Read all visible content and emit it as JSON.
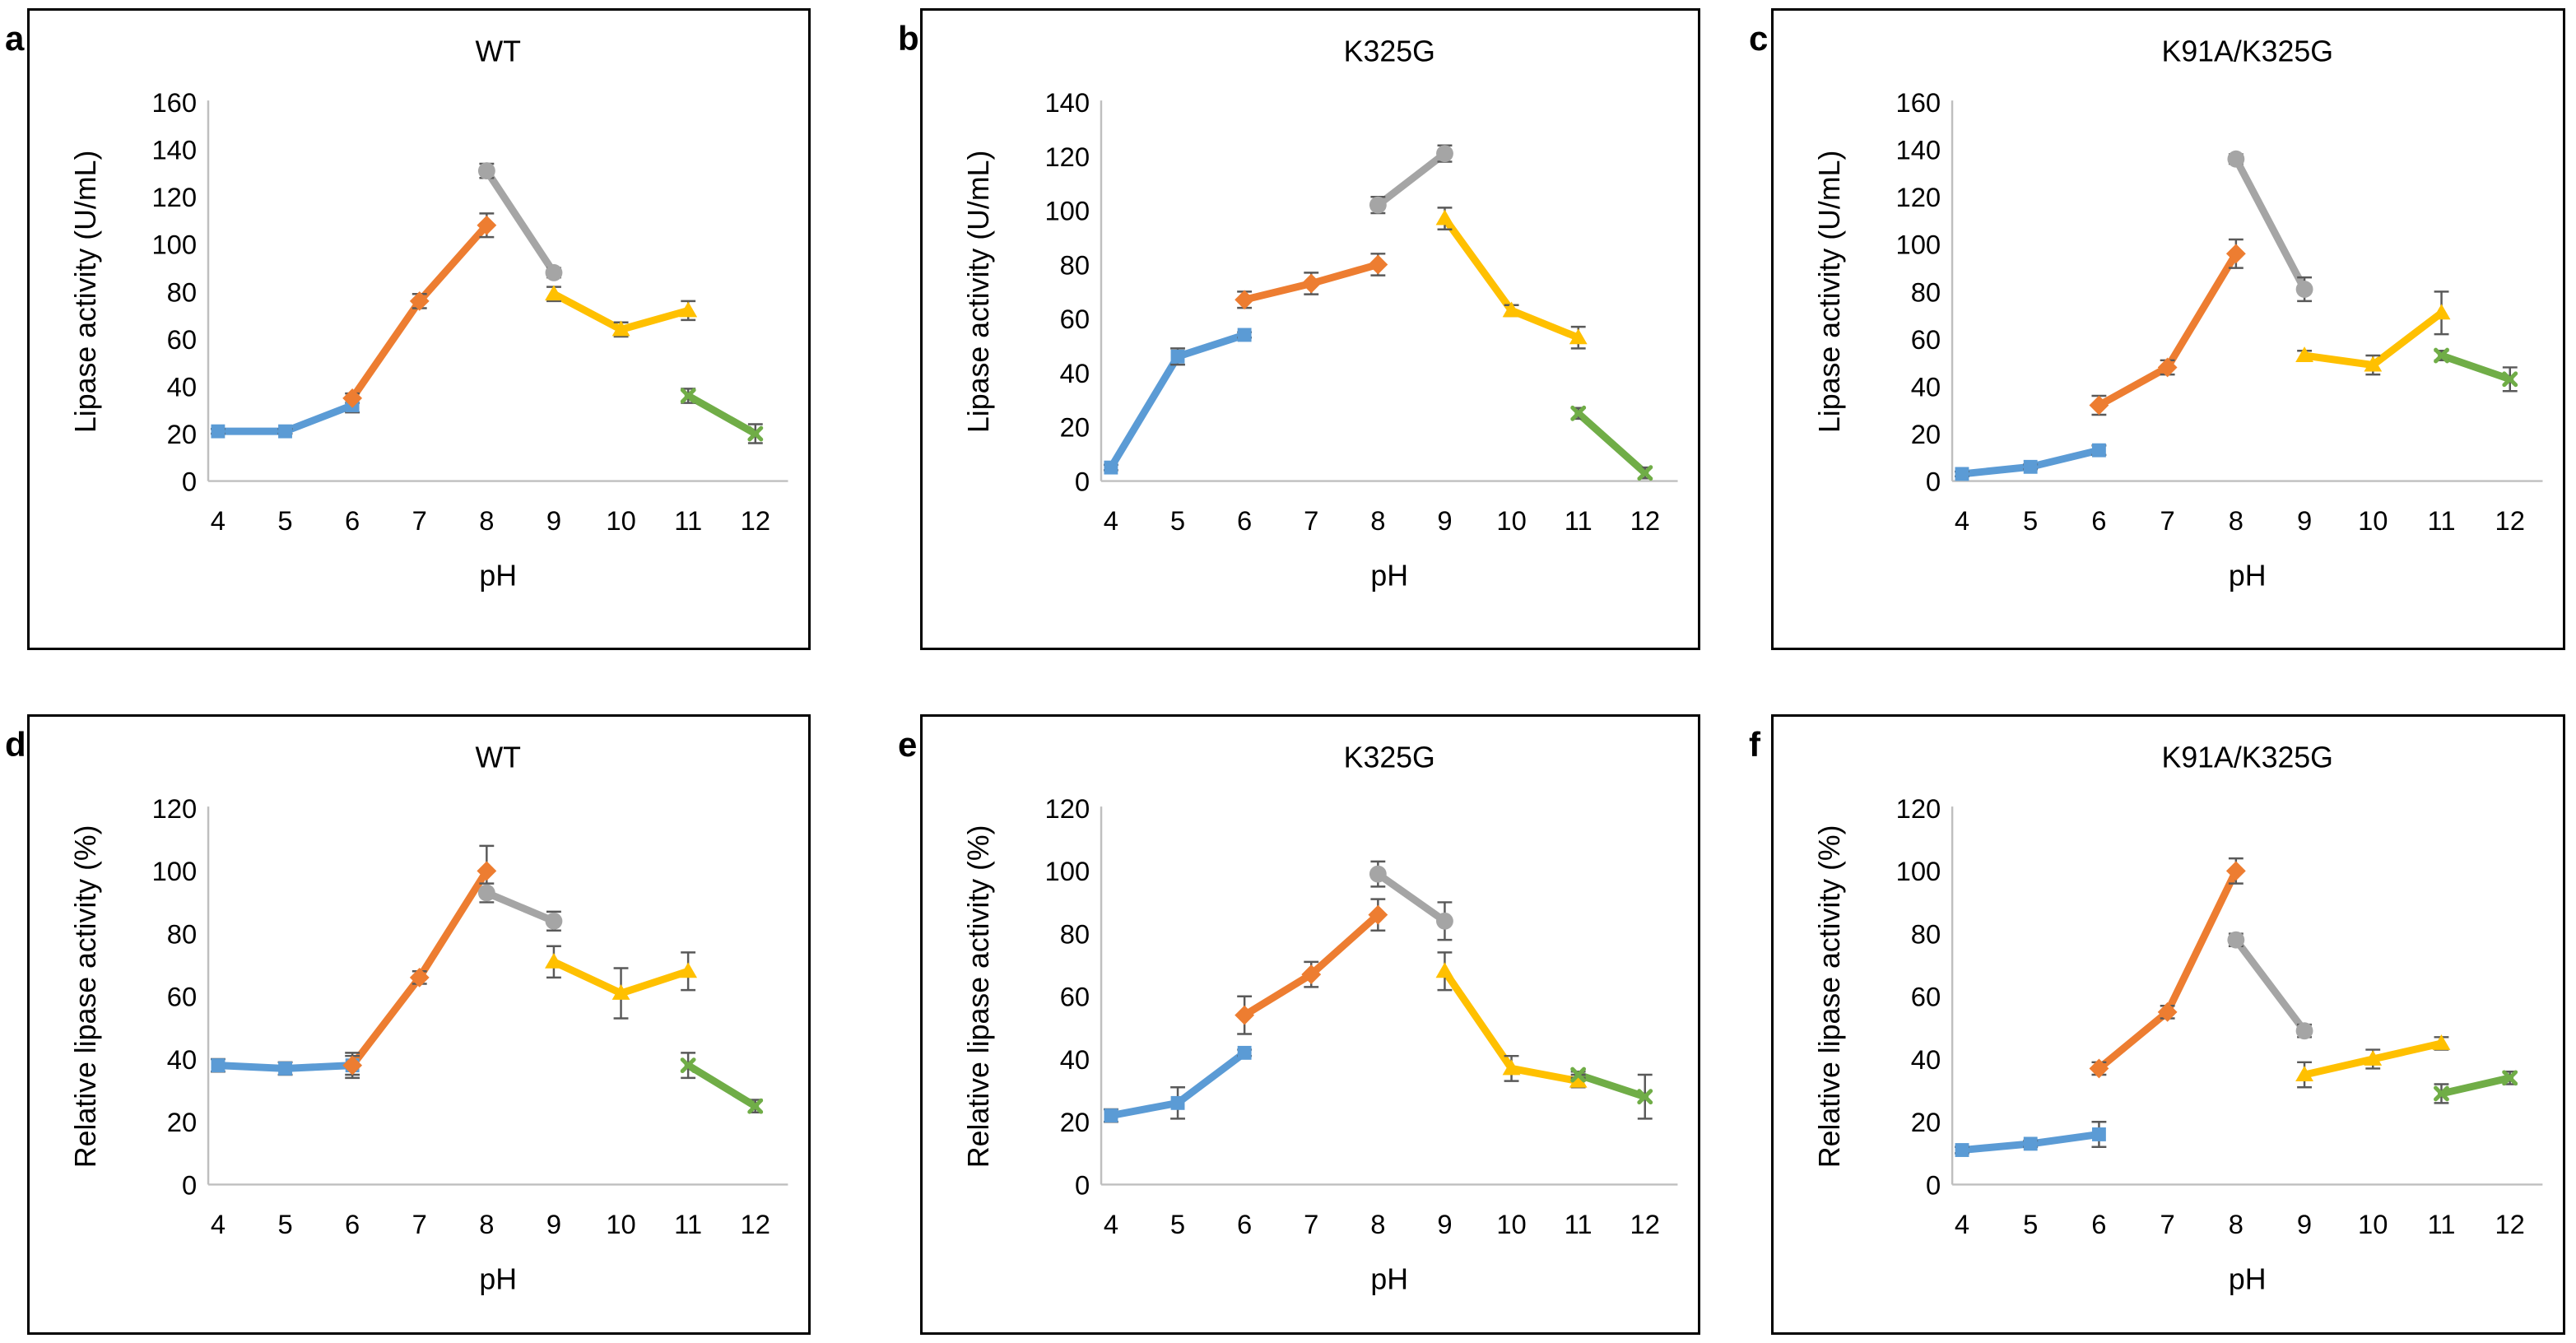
{
  "figure": {
    "panel_letters": [
      "a",
      "b",
      "c",
      "d",
      "e",
      "f"
    ],
    "xlabel": "pH",
    "ylabel_top_row": "Lipase activity (U/mL)",
    "ylabel_bottom_row": "Relative lipase activity (%)",
    "colors": {
      "blue": "#5B9BD5",
      "orange": "#ED7D31",
      "gray": "#A5A5A5",
      "yellow": "#FFC000",
      "green": "#70AD47",
      "error_bar": "#595959",
      "axis_line": "#BFBFBF",
      "text": "#000000",
      "panel_border": "#000000"
    }
  },
  "chart_data": [
    {
      "id": "a",
      "letter": "a",
      "type": "line",
      "title": "WT",
      "xlabel": "pH",
      "ylabel": "Lipase activity (U/mL)",
      "ylim": [
        0,
        160
      ],
      "yticks": [
        0,
        20,
        40,
        60,
        80,
        100,
        120,
        140,
        160
      ],
      "xticks": [
        4,
        5,
        6,
        7,
        8,
        9,
        10,
        11,
        12
      ],
      "grid": false,
      "legend": "none",
      "series": [
        {
          "name": "series-blue",
          "color": "blue",
          "marker": "square",
          "points": [
            {
              "x": 4,
              "y": 21,
              "err": 1
            },
            {
              "x": 5,
              "y": 21,
              "err": 1
            },
            {
              "x": 6,
              "y": 32,
              "err": 3
            }
          ]
        },
        {
          "name": "series-orange",
          "color": "orange",
          "marker": "diamond",
          "points": [
            {
              "x": 6,
              "y": 35,
              "err": 2
            },
            {
              "x": 7,
              "y": 76,
              "err": 3
            },
            {
              "x": 8,
              "y": 108,
              "err": 5
            }
          ]
        },
        {
          "name": "series-gray",
          "color": "gray",
          "marker": "circle",
          "points": [
            {
              "x": 8,
              "y": 131,
              "err": 3
            },
            {
              "x": 9,
              "y": 88,
              "err": 2
            }
          ]
        },
        {
          "name": "series-yellow",
          "color": "yellow",
          "marker": "triangle",
          "points": [
            {
              "x": 9,
              "y": 79,
              "err": 3
            },
            {
              "x": 10,
              "y": 64,
              "err": 3
            },
            {
              "x": 11,
              "y": 72,
              "err": 4
            }
          ]
        },
        {
          "name": "series-green",
          "color": "green",
          "marker": "x",
          "points": [
            {
              "x": 11,
              "y": 36,
              "err": 3
            },
            {
              "x": 12,
              "y": 20,
              "err": 4
            }
          ]
        }
      ]
    },
    {
      "id": "b",
      "letter": "b",
      "type": "line",
      "title": "K325G",
      "xlabel": "pH",
      "ylabel": "Lipase activity (U/mL)",
      "ylim": [
        0,
        140
      ],
      "yticks": [
        0,
        20,
        40,
        60,
        80,
        100,
        120,
        140
      ],
      "xticks": [
        4,
        5,
        6,
        7,
        8,
        9,
        10,
        11,
        12
      ],
      "grid": false,
      "legend": "none",
      "series": [
        {
          "name": "series-blue",
          "color": "blue",
          "marker": "square",
          "points": [
            {
              "x": 4,
              "y": 5,
              "err": 1
            },
            {
              "x": 5,
              "y": 46,
              "err": 3
            },
            {
              "x": 6,
              "y": 54,
              "err": 1
            }
          ]
        },
        {
          "name": "series-orange",
          "color": "orange",
          "marker": "diamond",
          "points": [
            {
              "x": 6,
              "y": 67,
              "err": 3
            },
            {
              "x": 7,
              "y": 73,
              "err": 4
            },
            {
              "x": 8,
              "y": 80,
              "err": 4
            }
          ]
        },
        {
          "name": "series-gray",
          "color": "gray",
          "marker": "circle",
          "points": [
            {
              "x": 8,
              "y": 102,
              "err": 3
            },
            {
              "x": 9,
              "y": 121,
              "err": 3
            }
          ]
        },
        {
          "name": "series-yellow",
          "color": "yellow",
          "marker": "triangle",
          "points": [
            {
              "x": 9,
              "y": 97,
              "err": 4
            },
            {
              "x": 10,
              "y": 63,
              "err": 2
            },
            {
              "x": 11,
              "y": 53,
              "err": 4
            }
          ]
        },
        {
          "name": "series-green",
          "color": "green",
          "marker": "x",
          "points": [
            {
              "x": 11,
              "y": 25,
              "err": 2
            },
            {
              "x": 12,
              "y": 3,
              "err": 2
            }
          ]
        }
      ]
    },
    {
      "id": "c",
      "letter": "c",
      "type": "line",
      "title": "K91A/K325G",
      "xlabel": "pH",
      "ylabel": "Lipase activity (U/mL)",
      "ylim": [
        0,
        160
      ],
      "yticks": [
        0,
        20,
        40,
        60,
        80,
        100,
        120,
        140,
        160
      ],
      "xticks": [
        4,
        5,
        6,
        7,
        8,
        9,
        10,
        11,
        12
      ],
      "grid": false,
      "legend": "none",
      "series": [
        {
          "name": "series-blue",
          "color": "blue",
          "marker": "square",
          "points": [
            {
              "x": 4,
              "y": 3,
              "err": 1
            },
            {
              "x": 5,
              "y": 6,
              "err": 1
            },
            {
              "x": 6,
              "y": 13,
              "err": 2
            }
          ]
        },
        {
          "name": "series-orange",
          "color": "orange",
          "marker": "diamond",
          "points": [
            {
              "x": 6,
              "y": 32,
              "err": 4
            },
            {
              "x": 7,
              "y": 48,
              "err": 3
            },
            {
              "x": 8,
              "y": 96,
              "err": 6
            }
          ]
        },
        {
          "name": "series-gray",
          "color": "gray",
          "marker": "circle",
          "points": [
            {
              "x": 8,
              "y": 136,
              "err": 2
            },
            {
              "x": 9,
              "y": 81,
              "err": 5
            }
          ]
        },
        {
          "name": "series-yellow",
          "color": "yellow",
          "marker": "triangle",
          "points": [
            {
              "x": 9,
              "y": 53,
              "err": 2
            },
            {
              "x": 10,
              "y": 49,
              "err": 4
            },
            {
              "x": 11,
              "y": 71,
              "err": 9
            }
          ]
        },
        {
          "name": "series-green",
          "color": "green",
          "marker": "x",
          "points": [
            {
              "x": 11,
              "y": 53,
              "err": 2
            },
            {
              "x": 12,
              "y": 43,
              "err": 5
            }
          ]
        }
      ]
    },
    {
      "id": "d",
      "letter": "d",
      "type": "line",
      "title": "WT",
      "xlabel": "pH",
      "ylabel": "Relative lipase activity (%)",
      "ylim": [
        0,
        120
      ],
      "yticks": [
        0,
        20,
        40,
        60,
        80,
        100,
        120
      ],
      "xticks": [
        4,
        5,
        6,
        7,
        8,
        9,
        10,
        11,
        12
      ],
      "grid": false,
      "legend": "none",
      "series": [
        {
          "name": "series-blue",
          "color": "blue",
          "marker": "square",
          "points": [
            {
              "x": 4,
              "y": 38,
              "err": 2
            },
            {
              "x": 5,
              "y": 37,
              "err": 2
            },
            {
              "x": 6,
              "y": 38,
              "err": 4
            }
          ]
        },
        {
          "name": "series-orange",
          "color": "orange",
          "marker": "diamond",
          "points": [
            {
              "x": 6,
              "y": 38,
              "err": 3
            },
            {
              "x": 7,
              "y": 66,
              "err": 2
            },
            {
              "x": 8,
              "y": 100,
              "err": 8
            }
          ]
        },
        {
          "name": "series-gray",
          "color": "gray",
          "marker": "circle",
          "points": [
            {
              "x": 8,
              "y": 93,
              "err": 3
            },
            {
              "x": 9,
              "y": 84,
              "err": 3
            }
          ]
        },
        {
          "name": "series-yellow",
          "color": "yellow",
          "marker": "triangle",
          "points": [
            {
              "x": 9,
              "y": 71,
              "err": 5
            },
            {
              "x": 10,
              "y": 61,
              "err": 8
            },
            {
              "x": 11,
              "y": 68,
              "err": 6
            }
          ]
        },
        {
          "name": "series-green",
          "color": "green",
          "marker": "x",
          "points": [
            {
              "x": 11,
              "y": 38,
              "err": 4
            },
            {
              "x": 12,
              "y": 25,
              "err": 2
            }
          ]
        }
      ]
    },
    {
      "id": "e",
      "letter": "e",
      "type": "line",
      "title": "K325G",
      "xlabel": "pH",
      "ylabel": "Relative lipase activity (%)",
      "ylim": [
        0,
        120
      ],
      "yticks": [
        0,
        20,
        40,
        60,
        80,
        100,
        120
      ],
      "xticks": [
        4,
        5,
        6,
        7,
        8,
        9,
        10,
        11,
        12
      ],
      "grid": false,
      "legend": "none",
      "series": [
        {
          "name": "series-blue",
          "color": "blue",
          "marker": "square",
          "points": [
            {
              "x": 4,
              "y": 22,
              "err": 2
            },
            {
              "x": 5,
              "y": 26,
              "err": 5
            },
            {
              "x": 6,
              "y": 42,
              "err": 1
            }
          ]
        },
        {
          "name": "series-orange",
          "color": "orange",
          "marker": "diamond",
          "points": [
            {
              "x": 6,
              "y": 54,
              "err": 6
            },
            {
              "x": 7,
              "y": 67,
              "err": 4
            },
            {
              "x": 8,
              "y": 86,
              "err": 5
            }
          ]
        },
        {
          "name": "series-gray",
          "color": "gray",
          "marker": "circle",
          "points": [
            {
              "x": 8,
              "y": 99,
              "err": 4
            },
            {
              "x": 9,
              "y": 84,
              "err": 6
            }
          ]
        },
        {
          "name": "series-yellow",
          "color": "yellow",
          "marker": "triangle",
          "points": [
            {
              "x": 9,
              "y": 68,
              "err": 6
            },
            {
              "x": 10,
              "y": 37,
              "err": 4
            },
            {
              "x": 11,
              "y": 33,
              "err": 2
            }
          ]
        },
        {
          "name": "series-green",
          "color": "green",
          "marker": "x",
          "points": [
            {
              "x": 11,
              "y": 35,
              "err": 1
            },
            {
              "x": 12,
              "y": 28,
              "err": 7
            }
          ]
        }
      ]
    },
    {
      "id": "f",
      "letter": "f",
      "type": "line",
      "title": "K91A/K325G",
      "xlabel": "pH",
      "ylabel": "Relative lipase activity (%)",
      "ylim": [
        0,
        120
      ],
      "yticks": [
        0,
        20,
        40,
        60,
        80,
        100,
        120
      ],
      "xticks": [
        4,
        5,
        6,
        7,
        8,
        9,
        10,
        11,
        12
      ],
      "grid": false,
      "legend": "none",
      "series": [
        {
          "name": "series-blue",
          "color": "blue",
          "marker": "square",
          "points": [
            {
              "x": 4,
              "y": 11,
              "err": 1
            },
            {
              "x": 5,
              "y": 13,
              "err": 1
            },
            {
              "x": 6,
              "y": 16,
              "err": 4
            }
          ]
        },
        {
          "name": "series-orange",
          "color": "orange",
          "marker": "diamond",
          "points": [
            {
              "x": 6,
              "y": 37,
              "err": 2
            },
            {
              "x": 7,
              "y": 55,
              "err": 2
            },
            {
              "x": 8,
              "y": 100,
              "err": 4
            }
          ]
        },
        {
          "name": "series-gray",
          "color": "gray",
          "marker": "circle",
          "points": [
            {
              "x": 8,
              "y": 78,
              "err": 2
            },
            {
              "x": 9,
              "y": 49,
              "err": 2
            }
          ]
        },
        {
          "name": "series-yellow",
          "color": "yellow",
          "marker": "triangle",
          "points": [
            {
              "x": 9,
              "y": 35,
              "err": 4
            },
            {
              "x": 10,
              "y": 40,
              "err": 3
            },
            {
              "x": 11,
              "y": 45,
              "err": 2
            }
          ]
        },
        {
          "name": "series-green",
          "color": "green",
          "marker": "x",
          "points": [
            {
              "x": 11,
              "y": 29,
              "err": 3
            },
            {
              "x": 12,
              "y": 34,
              "err": 2
            }
          ]
        }
      ]
    }
  ]
}
